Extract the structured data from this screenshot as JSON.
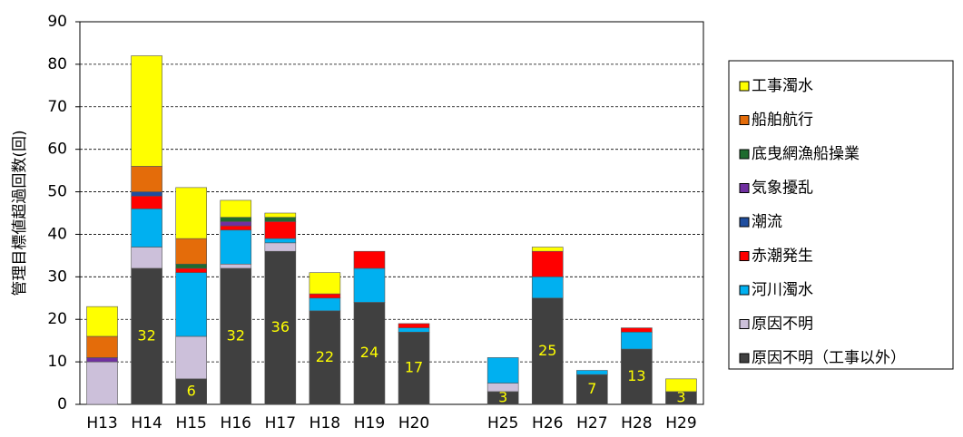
{
  "chart_data": {
    "type": "bar",
    "stacked": true,
    "y_label": "管理目標値超過回数(回)",
    "categories": [
      "H13",
      "H14",
      "H15",
      "H16",
      "H17",
      "H18",
      "H19",
      "H20",
      null,
      "H25",
      "H26",
      "H27",
      "H28",
      "H29"
    ],
    "ylim": [
      0,
      90
    ],
    "yticks": [
      0,
      10,
      20,
      30,
      40,
      50,
      60,
      70,
      80,
      90
    ],
    "grid": true,
    "series": [
      {
        "name": "原因不明（工事以外）",
        "color": "#404040",
        "show_labels": true,
        "values": [
          0,
          32,
          6,
          32,
          36,
          22,
          24,
          17,
          null,
          3,
          25,
          7,
          13,
          3
        ]
      },
      {
        "name": "原因不明",
        "color": "#ccc0da",
        "values": [
          10,
          5,
          10,
          1,
          2,
          0,
          0,
          0,
          null,
          2,
          0,
          0,
          0,
          0
        ]
      },
      {
        "name": "河川濁水",
        "color": "#00b0f0",
        "values": [
          0,
          9,
          15,
          8,
          1,
          3,
          8,
          1,
          null,
          6,
          5,
          1,
          4,
          0
        ]
      },
      {
        "name": "赤潮発生",
        "color": "#ff0000",
        "values": [
          0,
          3,
          1,
          1,
          4,
          1,
          4,
          1,
          null,
          0,
          6,
          0,
          1,
          0
        ]
      },
      {
        "name": "潮流",
        "color": "#1f4e9f",
        "values": [
          0,
          1,
          0,
          0,
          0,
          0,
          0,
          0,
          null,
          0,
          0,
          0,
          0,
          0
        ]
      },
      {
        "name": "気象擾乱",
        "color": "#7030a0",
        "values": [
          1,
          0,
          0,
          1,
          0,
          0,
          0,
          0,
          null,
          0,
          0,
          0,
          0,
          0
        ]
      },
      {
        "name": "底曳網漁船操業",
        "color": "#1e6b2e",
        "values": [
          0,
          0,
          1,
          1,
          1,
          0,
          0,
          0,
          null,
          0,
          0,
          0,
          0,
          0
        ]
      },
      {
        "name": "船舶航行",
        "color": "#e46c0a",
        "values": [
          5,
          6,
          6,
          0,
          0,
          0,
          0,
          0,
          null,
          0,
          0,
          0,
          0,
          0
        ]
      },
      {
        "name": "工事濁水",
        "color": "#ffff00",
        "values": [
          7,
          26,
          12,
          4,
          1,
          5,
          0,
          0,
          null,
          0,
          1,
          0,
          0,
          3
        ]
      }
    ]
  }
}
